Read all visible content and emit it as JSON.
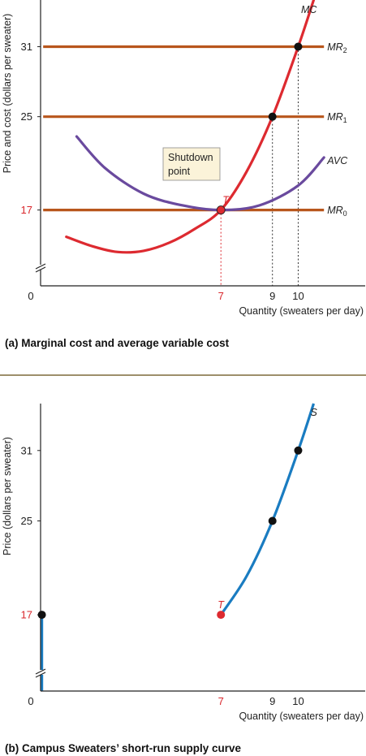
{
  "chart_data": [
    {
      "type": "line",
      "panel_caption": "(a) Marginal cost and average variable cost",
      "ylabel": "Price and cost (dollars per sweater)",
      "xlabel": "Quantity (sweaters per day)",
      "xlim": [
        0,
        12.6
      ],
      "ylim": [
        10.5,
        35
      ],
      "x_ticks": [
        {
          "value": 0,
          "label": "0",
          "highlight": false
        },
        {
          "value": 7,
          "label": "7",
          "highlight": true
        },
        {
          "value": 9,
          "label": "9",
          "highlight": false
        },
        {
          "value": 10,
          "label": "10",
          "highlight": false
        }
      ],
      "y_ticks": [
        {
          "value": 17,
          "label": "17",
          "highlight": true
        },
        {
          "value": 25,
          "label": "25",
          "highlight": false
        },
        {
          "value": 31,
          "label": "31",
          "highlight": false
        }
      ],
      "hlines": [
        {
          "y": 31,
          "label": "MR",
          "sub": "2",
          "x_start": 0.1,
          "x_end": 11.0,
          "color": "#b8561c"
        },
        {
          "y": 25,
          "label": "MR",
          "sub": "1",
          "x_start": 0.1,
          "x_end": 11.0,
          "color": "#b8561c"
        },
        {
          "y": 17,
          "label": "MR",
          "sub": "0",
          "x_start": 0.1,
          "x_end": 11.0,
          "color": "#b8561c"
        }
      ],
      "series": [
        {
          "name": "MC",
          "color": "#dd2a30",
          "x": [
            1.0,
            2.0,
            3.0,
            4.0,
            5.0,
            6.0,
            7.0,
            8.0,
            9.0,
            10.0,
            10.6
          ],
          "y": [
            14.7,
            13.9,
            13.4,
            13.5,
            14.2,
            15.4,
            17.0,
            20.3,
            25.0,
            31.0,
            35.0
          ]
        },
        {
          "name": "AVC",
          "color": "#6a4a9e",
          "x": [
            1.4,
            2.5,
            4.0,
            5.5,
            7.0,
            8.5,
            10.0,
            11.0
          ],
          "y": [
            23.3,
            20.6,
            18.4,
            17.4,
            17.0,
            17.4,
            19.1,
            21.5
          ]
        }
      ],
      "dashed_drops": [
        {
          "x": 7,
          "y": 17,
          "color": "#dd2a30"
        },
        {
          "x": 9,
          "y": 25,
          "color": "#333333"
        },
        {
          "x": 10,
          "y": 31,
          "color": "#333333"
        }
      ],
      "points": [
        {
          "x": 7,
          "y": 17,
          "label": "T",
          "color": "#dd2a30"
        },
        {
          "x": 9,
          "y": 25,
          "label": "",
          "color": "#111111"
        },
        {
          "x": 10,
          "y": 31,
          "label": "",
          "color": "#111111"
        }
      ],
      "callout": {
        "line1": "Shutdown",
        "line2": "point"
      }
    },
    {
      "type": "line",
      "panel_caption": "(b) Campus Sweaters’ short-run supply curve",
      "ylabel": "Price (dollars per sweater)",
      "xlabel": "Quantity (sweaters per day)",
      "xlim": [
        0,
        12.6
      ],
      "ylim": [
        10.5,
        35
      ],
      "x_ticks": [
        {
          "value": 0,
          "label": "0",
          "highlight": false
        },
        {
          "value": 7,
          "label": "7",
          "highlight": true
        },
        {
          "value": 9,
          "label": "9",
          "highlight": false
        },
        {
          "value": 10,
          "label": "10",
          "highlight": false
        }
      ],
      "y_ticks": [
        {
          "value": 17,
          "label": "17",
          "highlight": true
        },
        {
          "value": 25,
          "label": "25",
          "highlight": false
        },
        {
          "value": 31,
          "label": "31",
          "highlight": false
        }
      ],
      "series": [
        {
          "name": "S",
          "color": "#1a7cc1",
          "x": [
            7.0,
            8.0,
            9.0,
            10.0,
            10.6
          ],
          "y": [
            17.0,
            20.3,
            25.0,
            31.0,
            35.0
          ]
        },
        {
          "name": "",
          "color": "#1a7cc1",
          "x": [
            0.05,
            0.05
          ],
          "y": [
            10.5,
            17.0
          ]
        }
      ],
      "points": [
        {
          "x": 0.05,
          "y": 17,
          "label": "",
          "color": "#111111"
        },
        {
          "x": 7,
          "y": 17,
          "label": "T",
          "color": "#dd2a30"
        },
        {
          "x": 9,
          "y": 25,
          "label": "",
          "color": "#111111"
        },
        {
          "x": 10,
          "y": 31,
          "label": "",
          "color": "#111111"
        }
      ]
    }
  ]
}
